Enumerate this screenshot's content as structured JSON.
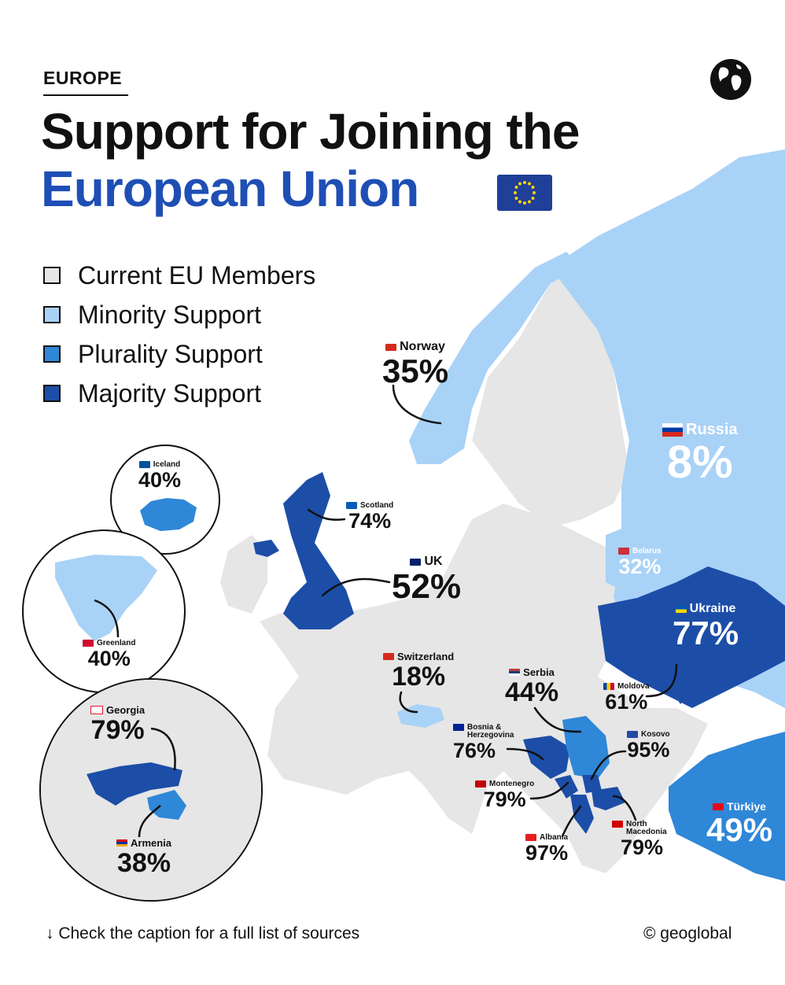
{
  "header": {
    "kicker": "EUROPE",
    "title_line1": "Support for Joining the",
    "title_line2": "European Union"
  },
  "legend": [
    {
      "label": "Current EU Members",
      "color": "#e6e6e6"
    },
    {
      "label": "Minority Support",
      "color": "#a9d2f7"
    },
    {
      "label": "Plurality Support",
      "color": "#2f87d8"
    },
    {
      "label": "Majority Support",
      "color": "#1c4ea8"
    }
  ],
  "colors": {
    "sea": "#ffffff",
    "eu_member": "#e6e6e6",
    "minority": "#a9d2f7",
    "plurality": "#2f87d8",
    "majority": "#1c4ea8",
    "title_blue": "#1f4fb5"
  },
  "countries": [
    {
      "name": "Norway",
      "value": "35%",
      "category": "minority"
    },
    {
      "name": "Russia",
      "value": "8%",
      "category": "minority"
    },
    {
      "name": "Iceland",
      "value": "40%",
      "category": "plurality"
    },
    {
      "name": "Scotland",
      "value": "74%",
      "category": "majority"
    },
    {
      "name": "UK",
      "value": "52%",
      "category": "majority"
    },
    {
      "name": "Belarus",
      "value": "32%",
      "category": "minority"
    },
    {
      "name": "Greenland",
      "value": "40%",
      "category": "minority"
    },
    {
      "name": "Ukraine",
      "value": "77%",
      "category": "majority"
    },
    {
      "name": "Switzerland",
      "value": "18%",
      "category": "minority"
    },
    {
      "name": "Serbia",
      "value": "44%",
      "category": "plurality"
    },
    {
      "name": "Moldova",
      "value": "61%",
      "category": "majority"
    },
    {
      "name": "Georgia",
      "value": "79%",
      "category": "majority"
    },
    {
      "name": "Bosnia & Herzegovina",
      "value": "76%",
      "category": "majority"
    },
    {
      "name": "Kosovo",
      "value": "95%",
      "category": "majority"
    },
    {
      "name": "Montenegro",
      "value": "79%",
      "category": "majority"
    },
    {
      "name": "Türkiye",
      "value": "49%",
      "category": "plurality"
    },
    {
      "name": "North Macedonia",
      "value": "79%",
      "category": "majority"
    },
    {
      "name": "Albania",
      "value": "97%",
      "category": "majority"
    },
    {
      "name": "Armenia",
      "value": "38%",
      "category": "plurality"
    }
  ],
  "footer": {
    "note": "↓ Check the caption for a full list of sources",
    "credit": "© geoglobal"
  },
  "icons": [
    "globe-icon",
    "eu-flag-icon"
  ]
}
